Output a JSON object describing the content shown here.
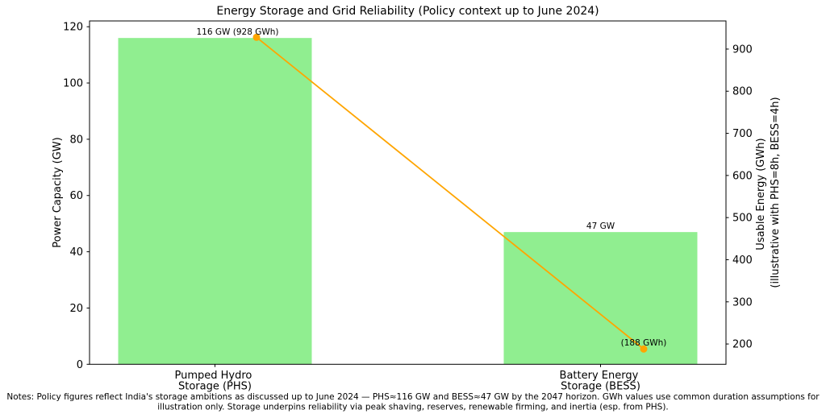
{
  "chart_data": {
    "type": "bar+line",
    "title": "Energy Storage and Grid Reliability (Policy context up to June 2024)",
    "categories": [
      [
        "Pumped Hydro",
        "Storage (PHS)"
      ],
      [
        "Battery Energy",
        "Storage (BESS)"
      ]
    ],
    "bar_series": {
      "name": "Power Capacity (GW)",
      "values": [
        116,
        47
      ],
      "color": "#90ee90"
    },
    "line_series": {
      "name": "Usable Energy (GWh)",
      "values": [
        928,
        188
      ],
      "color": "#ffa500"
    },
    "annotations": [
      "116 GW (928 GWh)",
      "47 GW",
      "(188 GWh)"
    ],
    "left_axis": {
      "label": "Power Capacity (GW)",
      "ticks": [
        0,
        20,
        40,
        60,
        80,
        100,
        120
      ],
      "range": [
        0,
        122.06
      ]
    },
    "right_axis": {
      "label_line1": "Usable Energy (GWh)",
      "label_line2": "(illustrative with PHS=8h, BESS=4h)",
      "ticks": [
        200,
        300,
        400,
        500,
        600,
        700,
        800,
        900
      ],
      "range": [
        151.8,
        966.8
      ]
    },
    "notes_line1": "Notes: Policy figures reflect India's storage ambitions as discussed up to June 2024 — PHS≈116 GW and BESS≈47 GW by the 2047 horizon. GWh values use common duration assumptions for",
    "notes_line2": "illustration only. Storage underpins reliability via peak shaving, reserves, renewable firming, and inertia (esp. from PHS).",
    "grid": false,
    "legend": "none",
    "background_color": "#ffffff",
    "text_color": "#000000"
  }
}
